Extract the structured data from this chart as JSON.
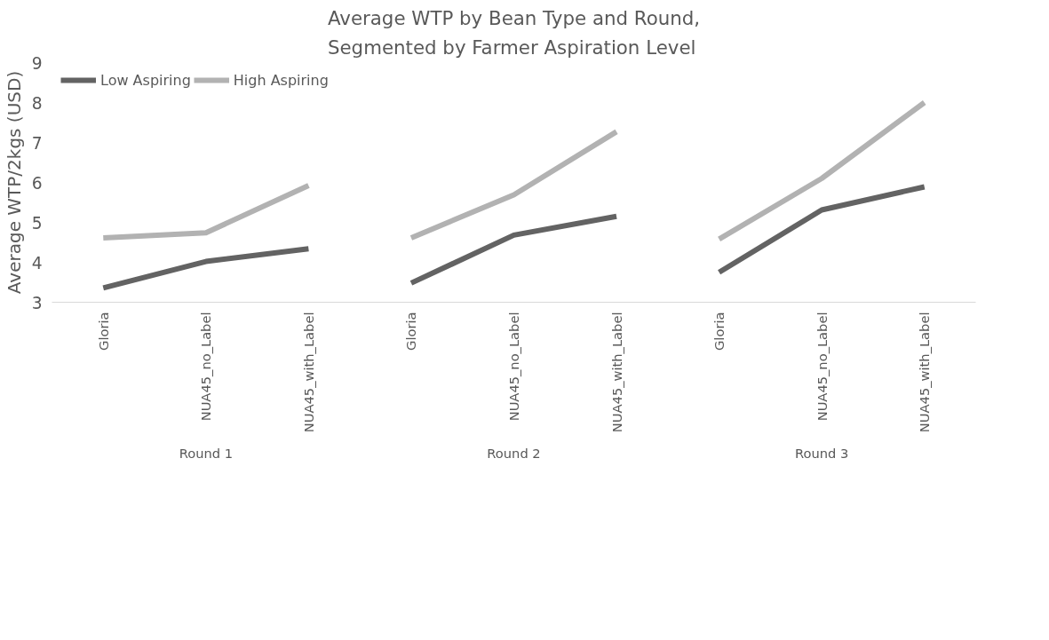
{
  "chart_data": {
    "type": "line",
    "title": "Average WTP by Bean Type and Round,\nSegmented by Farmer Aspiration Level",
    "ylabel": "Average WTP/2kgs (USD)",
    "categories": [
      "Gloria",
      "NUA45_no_Label",
      "NUA45_with_Label",
      "Gloria",
      "NUA45_no_Label",
      "NUA45_with_Label",
      "Gloria",
      "NUA45_no_Label",
      "NUA45_with_Label"
    ],
    "annotations": [
      "Round 1",
      "Round 2",
      "Round 3"
    ],
    "series": [
      {
        "name": "Low Aspiring",
        "color": "#636363",
        "values": [
          3.36,
          4.02,
          4.34,
          3.48,
          4.68,
          5.15,
          3.75,
          5.31,
          5.89
        ]
      },
      {
        "name": "High Aspiring",
        "color": "#b2b2b2",
        "values": [
          4.61,
          4.74,
          5.92,
          4.61,
          5.69,
          7.27,
          4.58,
          6.1,
          8.0
        ]
      }
    ],
    "ylim": [
      3,
      9
    ],
    "yticks": [
      3,
      4,
      5,
      6,
      7,
      8,
      9
    ],
    "grid": false,
    "legend": "top_left"
  }
}
